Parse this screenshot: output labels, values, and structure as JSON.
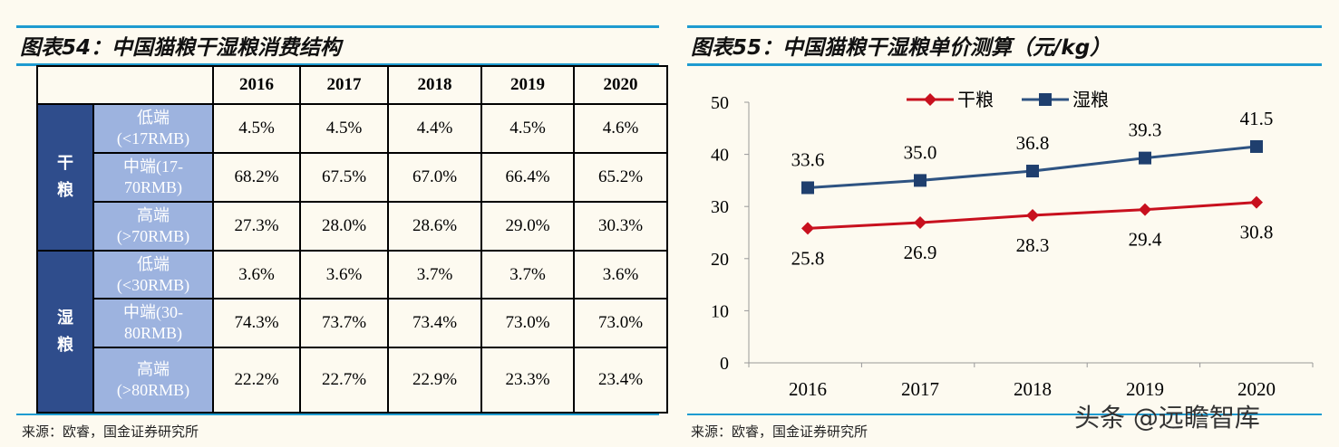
{
  "left": {
    "title": "图表54：中国猫粮干湿粮消费结构",
    "source": "来源：欧睿，国金证券研究所",
    "years": [
      "2016",
      "2017",
      "2018",
      "2019",
      "2020"
    ],
    "groups": [
      {
        "name": "干\n粮",
        "rows": [
          {
            "label": "低端\n(<17RMB)",
            "values": [
              "4.5%",
              "4.5%",
              "4.4%",
              "4.5%",
              "4.6%"
            ]
          },
          {
            "label": "中端(17-\n70RMB)",
            "values": [
              "68.2%",
              "67.5%",
              "67.0%",
              "66.4%",
              "65.2%"
            ]
          },
          {
            "label": "高端\n(>70RMB)",
            "values": [
              "27.3%",
              "28.0%",
              "28.6%",
              "29.0%",
              "30.3%"
            ]
          }
        ]
      },
      {
        "name": "湿\n粮",
        "rows": [
          {
            "label": "低端\n(<30RMB)",
            "values": [
              "3.6%",
              "3.6%",
              "3.7%",
              "3.7%",
              "3.6%"
            ]
          },
          {
            "label": "中端(30-\n80RMB)",
            "values": [
              "74.3%",
              "73.7%",
              "73.4%",
              "73.0%",
              "73.0%"
            ]
          },
          {
            "label": "高端\n(>80RMB)",
            "values": [
              "22.2%",
              "22.7%",
              "22.9%",
              "23.3%",
              "23.4%"
            ]
          }
        ]
      }
    ]
  },
  "right": {
    "title": "图表55：中国猫粮干湿粮单价测算（元/kg）",
    "source": "来源：欧睿，国金证券研究所"
  },
  "watermark": "头条 @远瞻智库",
  "chart_data": {
    "type": "line",
    "categories": [
      "2016",
      "2017",
      "2018",
      "2019",
      "2020"
    ],
    "ylim": [
      0,
      50
    ],
    "yticks": [
      0,
      10,
      20,
      30,
      40,
      50
    ],
    "legend": "top-center",
    "grid": false,
    "series": [
      {
        "name": "干粮",
        "values": [
          25.8,
          26.9,
          28.3,
          29.4,
          30.8
        ],
        "labels": [
          "25.8",
          "26.9",
          "28.3",
          "29.4",
          "30.8"
        ],
        "color": "#c8101e",
        "marker": "diamond"
      },
      {
        "name": "湿粮",
        "values": [
          33.6,
          35.0,
          36.8,
          39.3,
          41.5
        ],
        "labels": [
          "33.6",
          "35.0",
          "36.8",
          "39.3",
          "41.5"
        ],
        "color": "#2e5382",
        "marker": "square"
      }
    ]
  }
}
